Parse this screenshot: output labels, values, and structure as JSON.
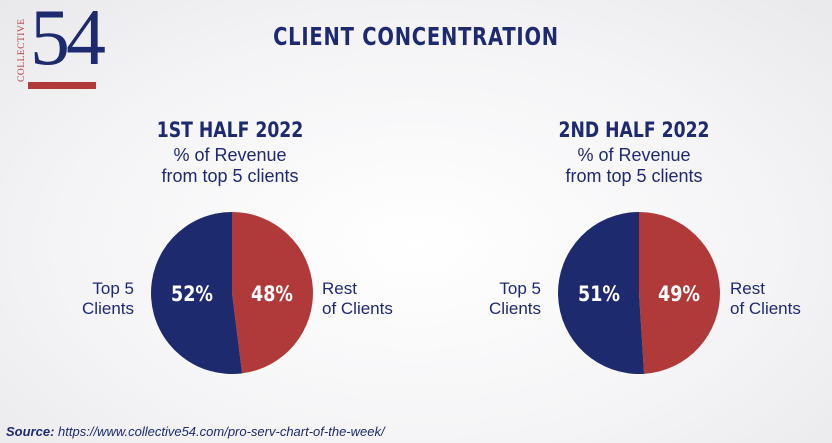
{
  "logo": {
    "vertical_text": "COLLECTIVE",
    "number": "54"
  },
  "title": "CLIENT CONCENTRATION",
  "colors": {
    "navy": "#1e2a6e",
    "red": "#b03a3a"
  },
  "panels": [
    {
      "heading": "1ST HALF 2022",
      "subtitle_line1": "% of Revenue",
      "subtitle_line2": "from top 5 clients",
      "left_label_line1": "Top 5",
      "left_label_line2": "Clients",
      "right_label_line1": "Rest",
      "right_label_line2": "of Clients"
    },
    {
      "heading": "2ND HALF 2022",
      "subtitle_line1": "% of Revenue",
      "subtitle_line2": "from top 5 clients",
      "left_label_line1": "Top 5",
      "left_label_line2": "Clients",
      "right_label_line1": "Rest",
      "right_label_line2": "of Clients"
    }
  ],
  "chart_data": [
    {
      "type": "pie",
      "title": "1ST HALF 2022",
      "subtitle": "% of Revenue from top 5 clients",
      "slices": [
        {
          "label": "Top 5 Clients",
          "value": 52,
          "display": "52%",
          "color": "#1e2a6e"
        },
        {
          "label": "Rest of Clients",
          "value": 48,
          "display": "48%",
          "color": "#b03a3a"
        }
      ]
    },
    {
      "type": "pie",
      "title": "2ND HALF 2022",
      "subtitle": "% of Revenue from top 5 clients",
      "slices": [
        {
          "label": "Top 5 Clients",
          "value": 51,
          "display": "51%",
          "color": "#1e2a6e"
        },
        {
          "label": "Rest of Clients",
          "value": 49,
          "display": "49%",
          "color": "#b03a3a"
        }
      ]
    }
  ],
  "source": {
    "label": "Source:",
    "url": "https://www.collective54.com/pro-serv-chart-of-the-week/"
  }
}
